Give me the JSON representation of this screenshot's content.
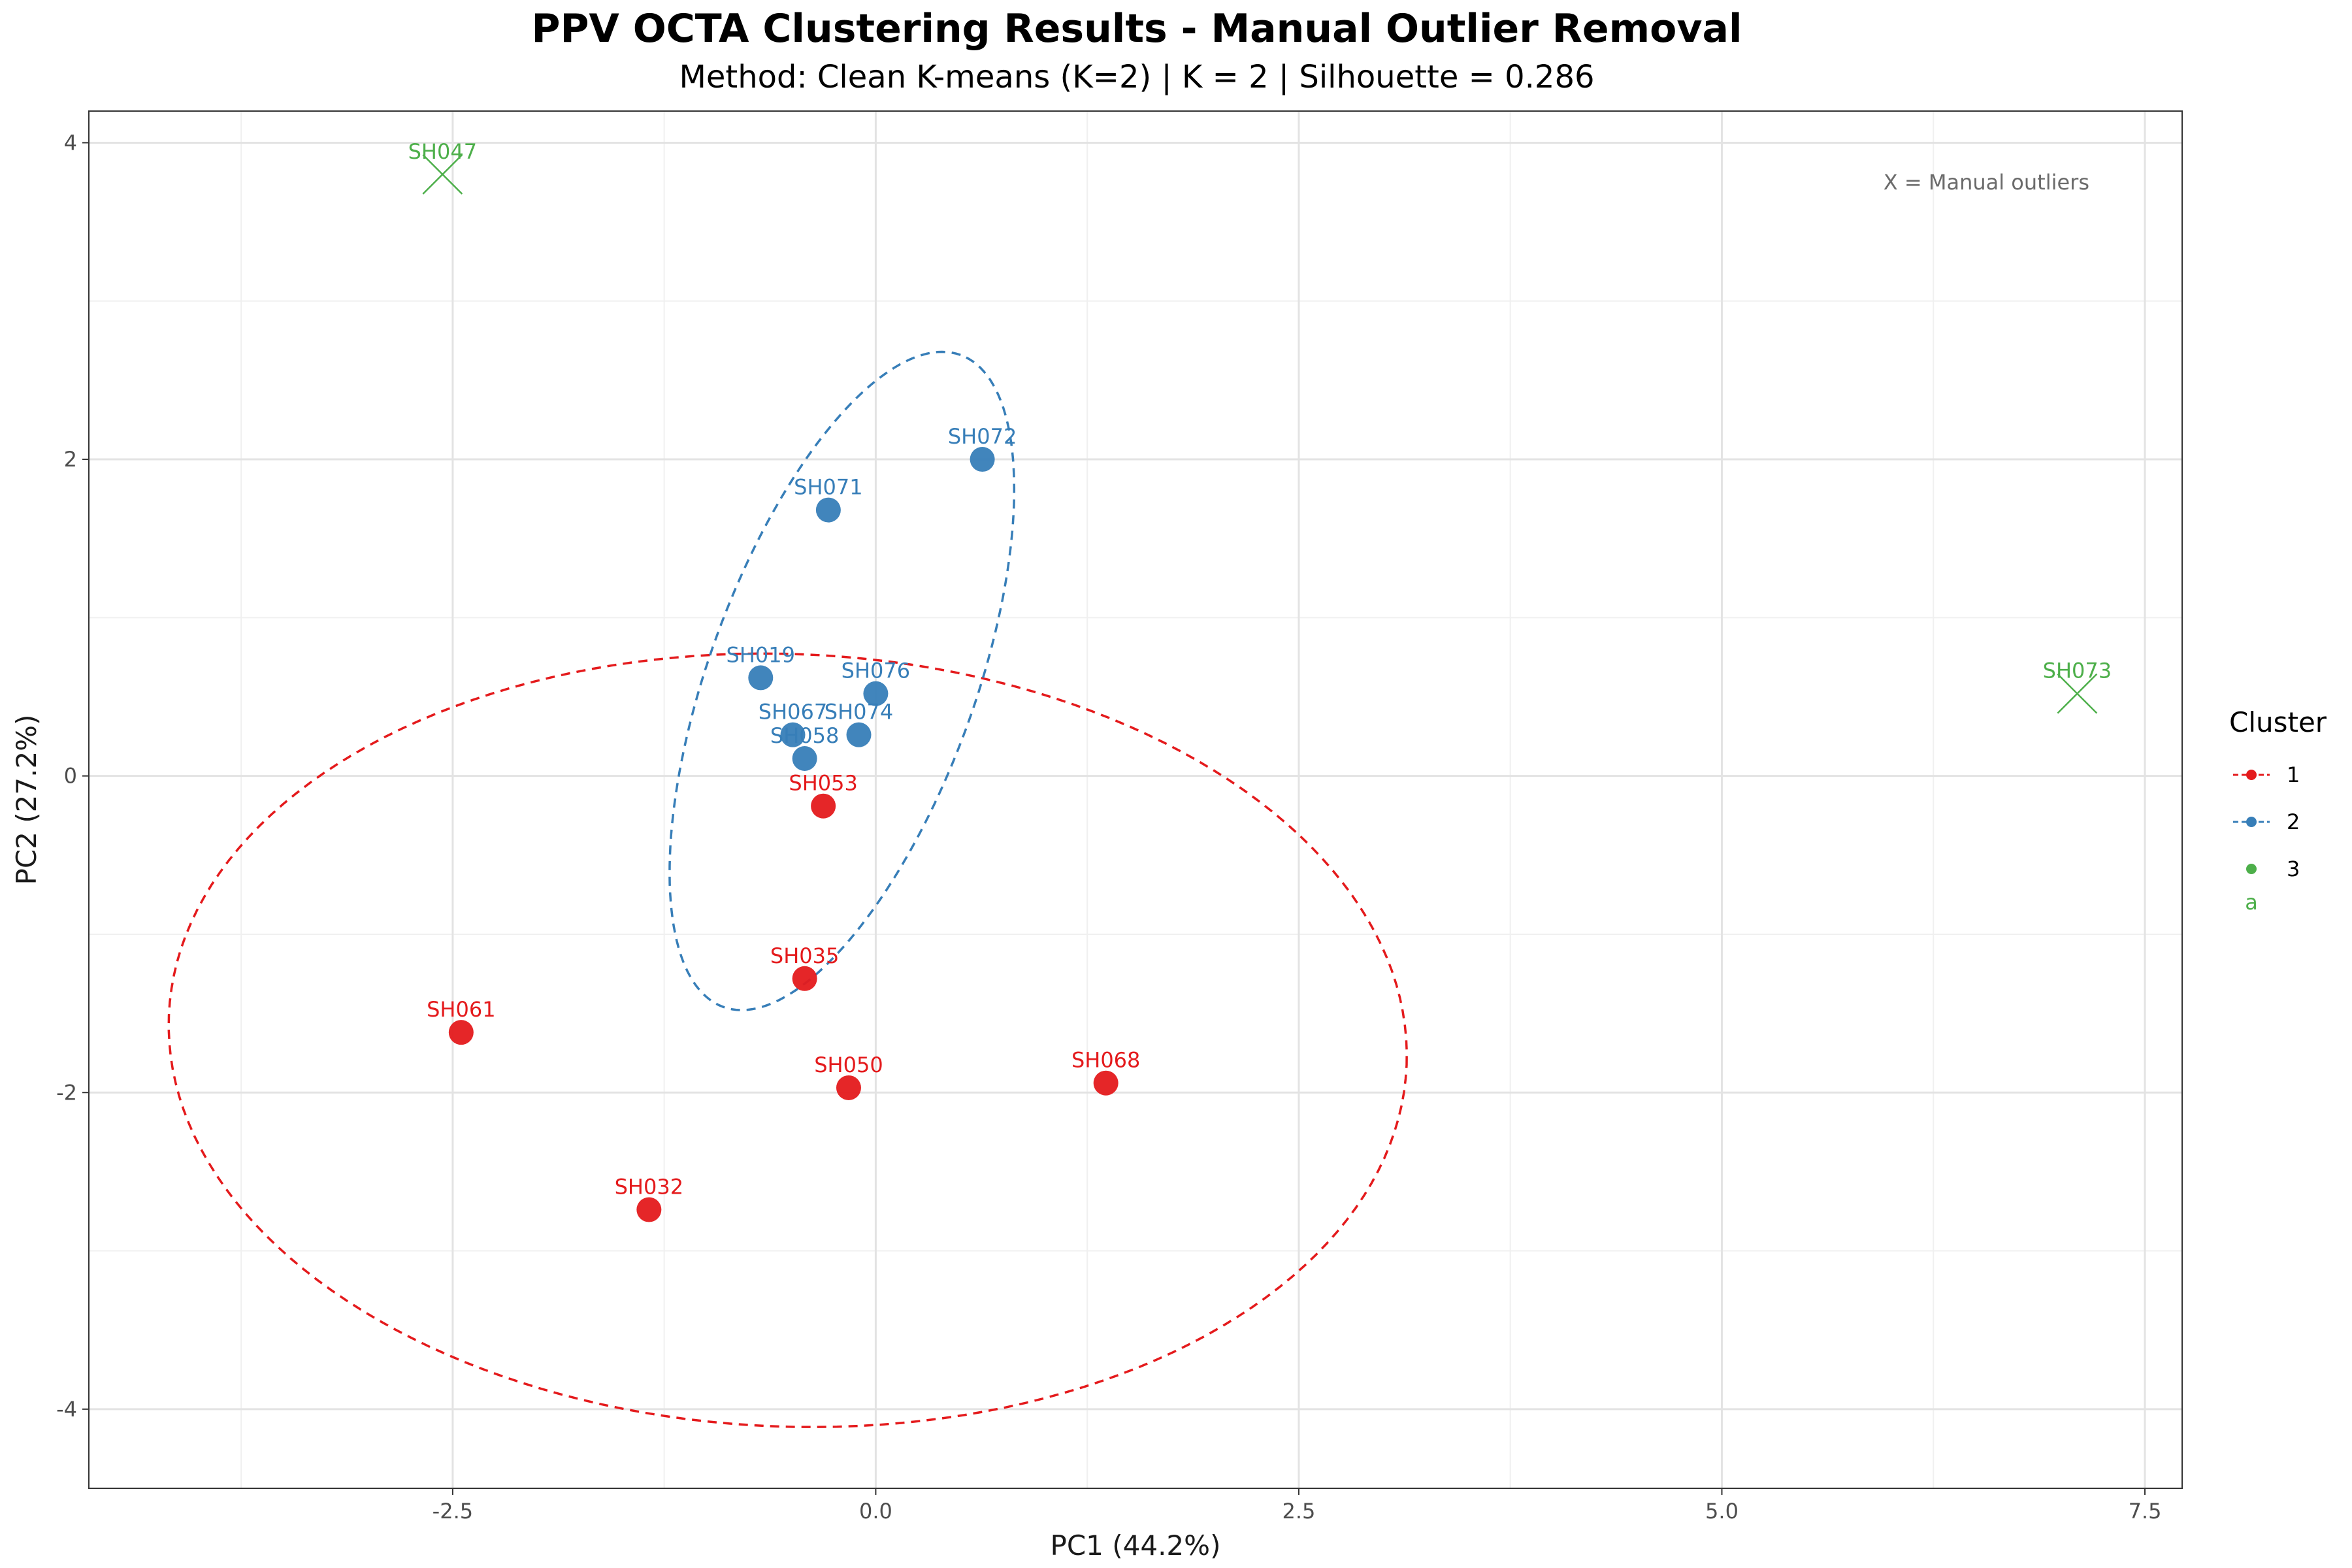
{
  "chart_data": {
    "type": "scatter",
    "title": "PPV OCTA Clustering Results - Manual Outlier Removal",
    "subtitle": "Method: Clean K-means (K=2) | K = 2 | Silhouette = 0.286",
    "xlabel": "PC1 (44.2%)",
    "ylabel": "PC2 (27.2%)",
    "xlim": [
      -4.65,
      7.72
    ],
    "ylim": [
      -4.5,
      4.2
    ],
    "xticks": [
      -2.5,
      0.0,
      2.5,
      5.0,
      7.5
    ],
    "xtick_labels": [
      "-2.5",
      "0.0",
      "2.5",
      "5.0",
      "7.5"
    ],
    "yticks": [
      -4,
      -2,
      0,
      2,
      4
    ],
    "ytick_labels": [
      "-4",
      "-2",
      "0",
      "2",
      "4"
    ],
    "grid": true,
    "legend": {
      "title": "Cluster",
      "position": "right",
      "entries": [
        {
          "label": "1",
          "color": "#e41a1c",
          "linestyle": "dashed"
        },
        {
          "label": "2",
          "color": "#377eb8",
          "linestyle": "dashed"
        },
        {
          "label": "3",
          "color": "#4daf4a",
          "linestyle": "none"
        }
      ],
      "extra_text": "a"
    },
    "annotation": "X = Manual outliers",
    "series": [
      {
        "name": "1",
        "color": "#e41a1c",
        "marker": "circle",
        "points": [
          {
            "label": "SH053",
            "x": -0.31,
            "y": -0.19
          },
          {
            "label": "SH035",
            "x": -0.42,
            "y": -1.28
          },
          {
            "label": "SH061",
            "x": -2.45,
            "y": -1.62
          },
          {
            "label": "SH050",
            "x": -0.16,
            "y": -1.97
          },
          {
            "label": "SH068",
            "x": 1.36,
            "y": -1.94
          },
          {
            "label": "SH032",
            "x": -1.34,
            "y": -2.74
          }
        ],
        "ellipse": {
          "cx": -0.52,
          "cy": -1.67,
          "rx": 3.66,
          "ry": 2.44,
          "angle": -2.3
        }
      },
      {
        "name": "2",
        "color": "#377eb8",
        "marker": "circle",
        "points": [
          {
            "label": "SH072",
            "x": 0.63,
            "y": 2.0
          },
          {
            "label": "SH071",
            "x": -0.28,
            "y": 1.68
          },
          {
            "label": "SH019",
            "x": -0.68,
            "y": 0.62
          },
          {
            "label": "SH076",
            "x": 0.0,
            "y": 0.52
          },
          {
            "label": "SH067",
            "x": -0.49,
            "y": 0.26
          },
          {
            "label": "SH074",
            "x": -0.1,
            "y": 0.26
          },
          {
            "label": "SH058",
            "x": -0.42,
            "y": 0.11
          }
        ],
        "ellipse": {
          "cx": -0.2,
          "cy": 0.6,
          "rx": 2.05,
          "ry": 0.84,
          "angle": 70
        }
      },
      {
        "name": "3",
        "color": "#4daf4a",
        "marker": "x",
        "points": [
          {
            "label": "SH047",
            "x": -2.56,
            "y": 3.8
          },
          {
            "label": "SH073",
            "x": 7.1,
            "y": 0.52
          }
        ]
      }
    ]
  }
}
